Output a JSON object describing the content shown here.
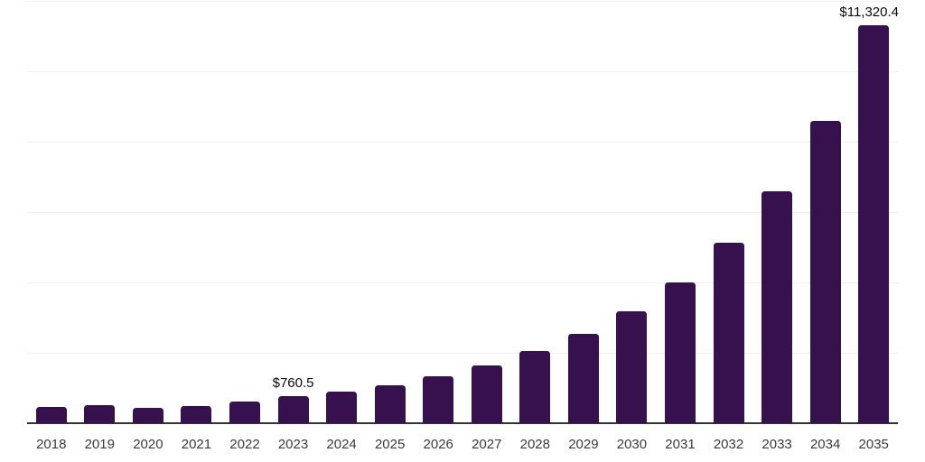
{
  "chart_data": {
    "type": "bar",
    "title": "",
    "subtitle": "",
    "xlabel": "",
    "ylabel": "",
    "legend": "none",
    "grid": "horizontal-only",
    "categories": [
      "2018",
      "2019",
      "2020",
      "2021",
      "2022",
      "2023",
      "2024",
      "2025",
      "2026",
      "2027",
      "2028",
      "2029",
      "2030",
      "2031",
      "2032",
      "2033",
      "2034",
      "2035"
    ],
    "values": [
      460,
      525,
      435,
      490,
      615,
      760.5,
      895,
      1075,
      1330,
      1640,
      2040,
      2540,
      3175,
      3990,
      5120,
      6580,
      8580,
      11320.4
    ],
    "values_note": "Only 2023 and 2035 are labeled in the chart; other values estimated from gridlines (interval = 2000)",
    "ylim": [
      0,
      12000
    ],
    "gridline_interval": 2000,
    "data_labels": [
      {
        "category": "2023",
        "text": "$760.5"
      },
      {
        "category": "2035",
        "text": "$11,320.4"
      }
    ]
  },
  "colors": {
    "background": "#ffffff",
    "bar": "#37114E",
    "axis_line": "#333333",
    "gridline": "#f1f1f1",
    "tick_label": "#3b3b3b",
    "data_label": "#0a0a0a"
  }
}
